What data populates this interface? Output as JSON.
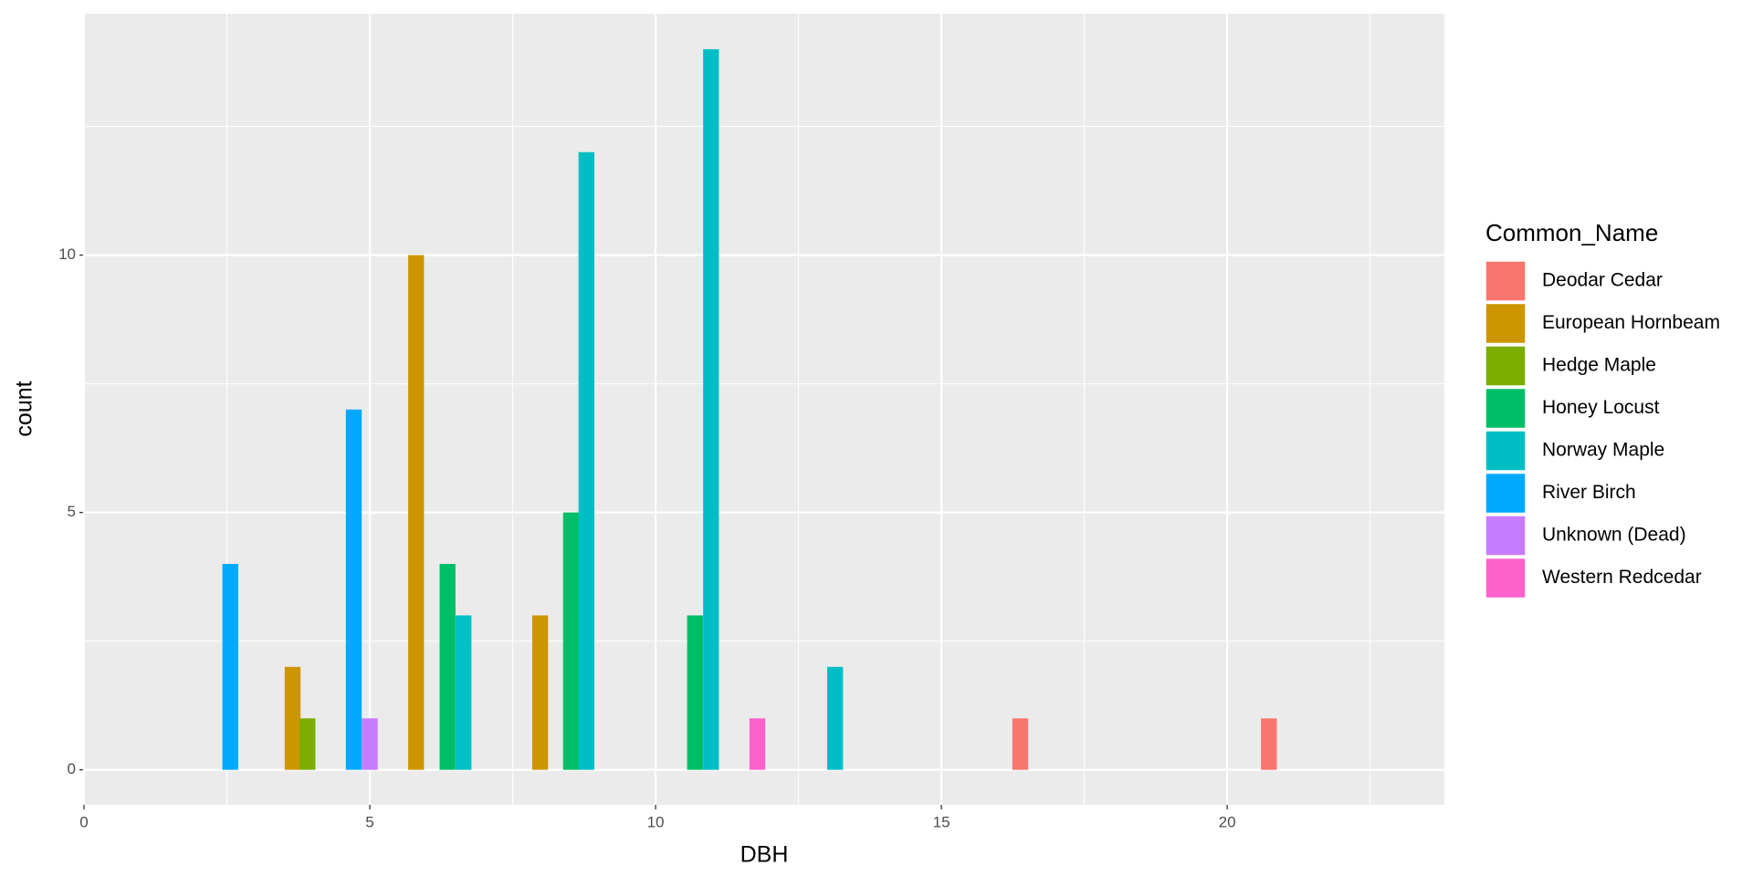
{
  "chart_data": {
    "type": "bar",
    "x_label": "DBH",
    "y_label": "count",
    "legend_title": "Common_Name",
    "xlim": [
      0,
      23.8
    ],
    "ylim": [
      -0.68,
      14.69
    ],
    "xticks": [
      0,
      5,
      10,
      15,
      20
    ],
    "yticks": [
      0,
      5,
      10
    ],
    "grid": true,
    "legend": "right",
    "series": [
      {
        "name": "Deodar Cedar",
        "color": "#F8766D",
        "x": [
          16.38,
          20.73
        ],
        "values": [
          1,
          1
        ]
      },
      {
        "name": "European Hornbeam",
        "color": "#CD9600",
        "x": [
          3.65,
          5.81,
          7.98
        ],
        "values": [
          2,
          10,
          3
        ]
      },
      {
        "name": "Hedge Maple",
        "color": "#7CAE00",
        "x": [
          3.91
        ],
        "values": [
          1
        ]
      },
      {
        "name": "Honey Locust",
        "color": "#00BE67",
        "x": [
          6.36,
          8.52,
          10.69
        ],
        "values": [
          4,
          5,
          3
        ]
      },
      {
        "name": "Norway Maple",
        "color": "#00BFC4",
        "x": [
          6.64,
          8.79,
          10.97,
          13.14
        ],
        "values": [
          3,
          12,
          14,
          2
        ]
      },
      {
        "name": "River Birch",
        "color": "#00A9FF",
        "x": [
          2.56,
          4.72
        ],
        "values": [
          4,
          7
        ]
      },
      {
        "name": "Unknown (Dead)",
        "color": "#C77CFF",
        "x": [
          5.0
        ],
        "values": [
          1
        ]
      },
      {
        "name": "Western Redcedar",
        "color": "#FF61CC",
        "x": [
          11.78
        ],
        "values": [
          1
        ]
      }
    ]
  }
}
